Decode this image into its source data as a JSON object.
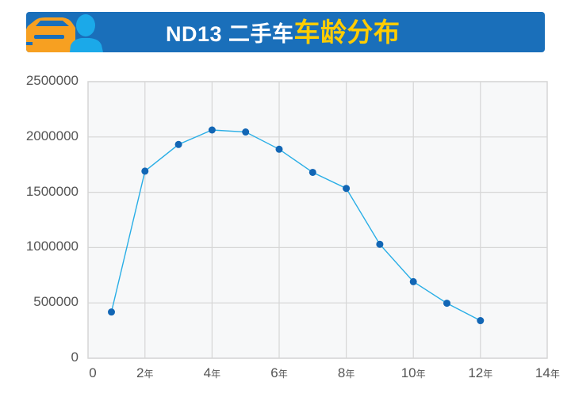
{
  "header": {
    "title_prefix": "ND13 二手车",
    "title_highlight": "车龄分布",
    "icons": [
      "car-icon",
      "person-icon"
    ],
    "colors": {
      "background": "#1a6fba",
      "prefix_text": "#ffffff",
      "highlight_text": "#ffcc00",
      "car": "#f7a021",
      "person": "#1ba9e9"
    }
  },
  "chart_data": {
    "type": "line",
    "title": "ND13 二手车车龄分布",
    "xlabel": "",
    "ylabel": "",
    "x": [
      1,
      2,
      3,
      4,
      5,
      6,
      7,
      8,
      9,
      10,
      11,
      12
    ],
    "series": [
      {
        "name": "车龄分布",
        "values": [
          418000,
          1691000,
          1932000,
          2063000,
          2045000,
          1889000,
          1680000,
          1535000,
          1030000,
          692000,
          497000,
          340000
        ],
        "line_color": "#29aee6",
        "marker_color": "#1266b5"
      }
    ],
    "xlim": [
      0,
      14
    ],
    "ylim": [
      0,
      2500000
    ],
    "x_ticks": [
      {
        "value": 0,
        "label": "0",
        "unit": ""
      },
      {
        "value": 2,
        "label": "2",
        "unit": "年"
      },
      {
        "value": 4,
        "label": "4",
        "unit": "年"
      },
      {
        "value": 6,
        "label": "6",
        "unit": "年"
      },
      {
        "value": 8,
        "label": "8",
        "unit": "年"
      },
      {
        "value": 10,
        "label": "10",
        "unit": "年"
      },
      {
        "value": 12,
        "label": "12",
        "unit": "年"
      },
      {
        "value": 14,
        "label": "14",
        "unit": "年"
      }
    ],
    "y_ticks": [
      {
        "value": 2500000,
        "label": "2500000"
      },
      {
        "value": 2000000,
        "label": "2000000"
      },
      {
        "value": 1500000,
        "label": "1500000"
      },
      {
        "value": 1000000,
        "label": "1000000"
      },
      {
        "value": 500000,
        "label": "500000"
      },
      {
        "value": 0,
        "label": "0"
      }
    ],
    "grid": true,
    "legend": "none",
    "plot_background": "#f7f8f9",
    "grid_color": "#d6d6d6"
  }
}
